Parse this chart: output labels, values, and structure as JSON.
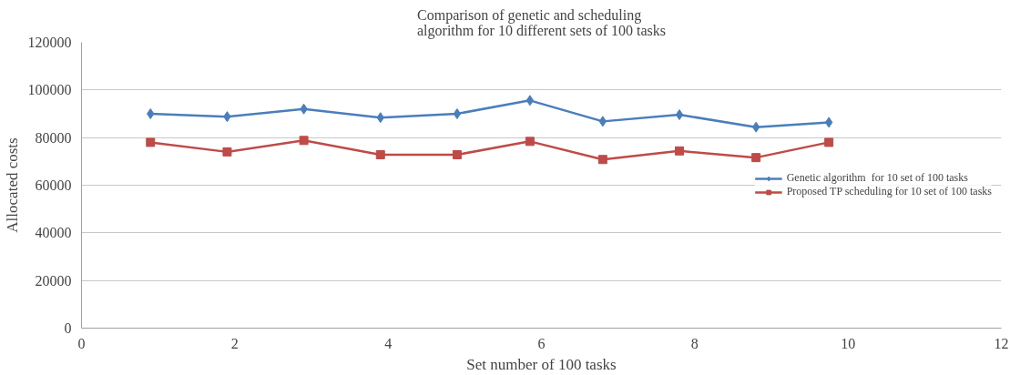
{
  "chart_data": {
    "type": "line",
    "title": "Comparison of genetic and scheduling\nalgorithm for 10 different sets of 100 tasks",
    "xlabel": "Set number of 100 tasks",
    "ylabel": "Allocated costs",
    "x": [
      0.9,
      1.9,
      2.9,
      3.9,
      4.9,
      5.85,
      6.8,
      7.8,
      8.8,
      9.75
    ],
    "series": [
      {
        "name": "Genetic algorithm  for 10 set of 100 tasks",
        "color": "#4a7ebb",
        "marker": "diamond",
        "values": [
          90000,
          88800,
          92000,
          88400,
          90000,
          95600,
          86800,
          89600,
          84400,
          86400
        ]
      },
      {
        "name": "Proposed TP scheduling for 10 set of 100 tasks",
        "color": "#be4b48",
        "marker": "square",
        "values": [
          78000,
          74000,
          78800,
          72800,
          72800,
          78400,
          70800,
          74400,
          71600,
          78000
        ]
      }
    ],
    "xlim": [
      0,
      12
    ],
    "xticks": [
      0,
      2,
      4,
      6,
      8,
      10,
      12
    ],
    "ylim": [
      0,
      120000
    ],
    "yticks": [
      0,
      20000,
      40000,
      60000,
      80000,
      100000,
      120000
    ],
    "grid": "y",
    "legend": "right",
    "line_style": "solid"
  }
}
